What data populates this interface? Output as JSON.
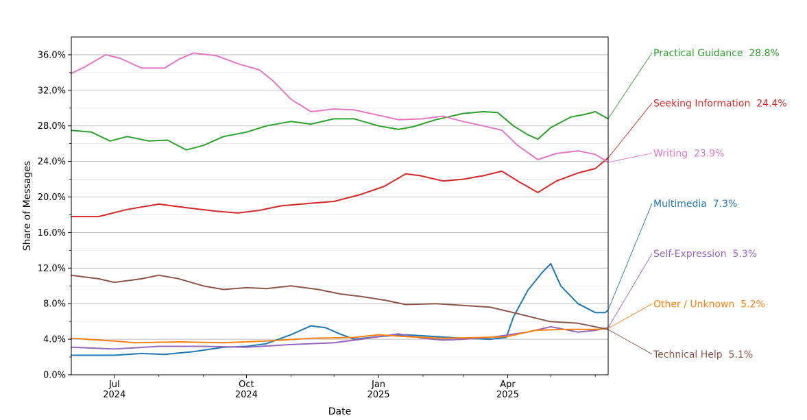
{
  "chart_data": {
    "type": "line",
    "title": "",
    "xlabel": "Date",
    "ylabel": "Share of Messages",
    "xlim": [
      "2024-06-01",
      "2025-06-10"
    ],
    "ylim": [
      0,
      38
    ],
    "y_ticks": [
      0,
      4,
      8,
      12,
      16,
      20,
      24,
      28,
      32,
      36
    ],
    "y_tick_labels": [
      "0.0%",
      "4.0%",
      "8.0%",
      "12.0%",
      "16.0%",
      "20.0%",
      "24.0%",
      "28.0%",
      "32.0%",
      "36.0%"
    ],
    "x_major_ticks": [
      {
        "date": "2024-07-01",
        "line1": "Jul",
        "line2": "2024"
      },
      {
        "date": "2024-10-01",
        "line1": "Oct",
        "line2": "2024"
      },
      {
        "date": "2025-01-01",
        "line1": "Jan",
        "line2": "2025"
      },
      {
        "date": "2025-04-01",
        "line1": "Apr",
        "line2": "2025"
      }
    ],
    "x_minor_ticks": [
      "2024-08-01",
      "2024-09-01",
      "2024-11-01",
      "2024-12-01",
      "2025-02-01",
      "2025-03-01",
      "2025-05-01",
      "2025-06-01"
    ],
    "grid": "horizontal",
    "legend": "end-of-line labels at right",
    "series": [
      {
        "name": "Practical Guidance",
        "final_label": "28.8%",
        "color": "#2ca02c",
        "points": [
          [
            "2024-06-01",
            27.5
          ],
          [
            "2024-06-15",
            27.3
          ],
          [
            "2024-06-28",
            26.3
          ],
          [
            "2024-07-10",
            26.8
          ],
          [
            "2024-07-25",
            26.3
          ],
          [
            "2024-08-07",
            26.4
          ],
          [
            "2024-08-20",
            25.3
          ],
          [
            "2024-09-01",
            25.8
          ],
          [
            "2024-09-15",
            26.8
          ],
          [
            "2024-10-01",
            27.3
          ],
          [
            "2024-10-15",
            28.0
          ],
          [
            "2024-11-01",
            28.5
          ],
          [
            "2024-11-15",
            28.2
          ],
          [
            "2024-12-01",
            28.8
          ],
          [
            "2024-12-15",
            28.8
          ],
          [
            "2025-01-01",
            28.0
          ],
          [
            "2025-01-15",
            27.6
          ],
          [
            "2025-01-25",
            27.9
          ],
          [
            "2025-02-10",
            28.7
          ],
          [
            "2025-03-01",
            29.4
          ],
          [
            "2025-03-15",
            29.6
          ],
          [
            "2025-03-25",
            29.5
          ],
          [
            "2025-04-05",
            28.0
          ],
          [
            "2025-04-15",
            27.0
          ],
          [
            "2025-04-22",
            26.5
          ],
          [
            "2025-05-01",
            27.8
          ],
          [
            "2025-05-15",
            29.0
          ],
          [
            "2025-05-25",
            29.3
          ],
          [
            "2025-06-01",
            29.6
          ],
          [
            "2025-06-10",
            28.8
          ]
        ]
      },
      {
        "name": "Seeking Information",
        "final_label": "24.4%",
        "color": "#d62728",
        "points": [
          [
            "2024-06-01",
            17.8
          ],
          [
            "2024-06-20",
            17.8
          ],
          [
            "2024-07-10",
            18.6
          ],
          [
            "2024-08-01",
            19.2
          ],
          [
            "2024-08-20",
            18.8
          ],
          [
            "2024-09-10",
            18.4
          ],
          [
            "2024-09-25",
            18.2
          ],
          [
            "2024-10-10",
            18.5
          ],
          [
            "2024-10-25",
            19.0
          ],
          [
            "2024-11-15",
            19.3
          ],
          [
            "2024-12-01",
            19.5
          ],
          [
            "2024-12-20",
            20.3
          ],
          [
            "2025-01-05",
            21.2
          ],
          [
            "2025-01-20",
            22.6
          ],
          [
            "2025-01-30",
            22.4
          ],
          [
            "2025-02-15",
            21.8
          ],
          [
            "2025-03-01",
            22.0
          ],
          [
            "2025-03-15",
            22.4
          ],
          [
            "2025-03-28",
            22.9
          ],
          [
            "2025-04-08",
            21.8
          ],
          [
            "2025-04-22",
            20.5
          ],
          [
            "2025-05-05",
            21.8
          ],
          [
            "2025-05-20",
            22.7
          ],
          [
            "2025-06-01",
            23.2
          ],
          [
            "2025-06-10",
            24.4
          ]
        ]
      },
      {
        "name": "Writing",
        "final_label": "23.9%",
        "color": "#e377c2",
        "points": [
          [
            "2024-06-01",
            33.9
          ],
          [
            "2024-06-10",
            34.6
          ],
          [
            "2024-06-25",
            36.0
          ],
          [
            "2024-07-05",
            35.6
          ],
          [
            "2024-07-20",
            34.5
          ],
          [
            "2024-08-05",
            34.5
          ],
          [
            "2024-08-15",
            35.5
          ],
          [
            "2024-08-25",
            36.2
          ],
          [
            "2024-09-10",
            35.9
          ],
          [
            "2024-09-25",
            35.0
          ],
          [
            "2024-10-10",
            34.3
          ],
          [
            "2024-10-20",
            33.0
          ],
          [
            "2024-11-01",
            31.0
          ],
          [
            "2024-11-15",
            29.6
          ],
          [
            "2024-12-01",
            29.9
          ],
          [
            "2024-12-15",
            29.8
          ],
          [
            "2025-01-01",
            29.2
          ],
          [
            "2025-01-15",
            28.7
          ],
          [
            "2025-02-01",
            28.8
          ],
          [
            "2025-02-15",
            29.1
          ],
          [
            "2025-03-01",
            28.5
          ],
          [
            "2025-03-15",
            28.0
          ],
          [
            "2025-03-28",
            27.5
          ],
          [
            "2025-04-08",
            25.8
          ],
          [
            "2025-04-22",
            24.2
          ],
          [
            "2025-05-05",
            24.9
          ],
          [
            "2025-05-20",
            25.2
          ],
          [
            "2025-06-01",
            24.8
          ],
          [
            "2025-06-10",
            23.9
          ]
        ]
      },
      {
        "name": "Multimedia",
        "final_label": "7.3%",
        "color": "#1f77b4",
        "points": [
          [
            "2024-06-01",
            2.2
          ],
          [
            "2024-07-01",
            2.2
          ],
          [
            "2024-07-20",
            2.4
          ],
          [
            "2024-08-05",
            2.3
          ],
          [
            "2024-08-25",
            2.6
          ],
          [
            "2024-09-15",
            3.1
          ],
          [
            "2024-10-01",
            3.2
          ],
          [
            "2024-10-15",
            3.5
          ],
          [
            "2024-11-01",
            4.5
          ],
          [
            "2024-11-15",
            5.5
          ],
          [
            "2024-11-25",
            5.3
          ],
          [
            "2024-12-05",
            4.6
          ],
          [
            "2024-12-15",
            4.0
          ],
          [
            "2025-01-01",
            4.3
          ],
          [
            "2025-01-20",
            4.5
          ],
          [
            "2025-02-10",
            4.3
          ],
          [
            "2025-03-01",
            4.1
          ],
          [
            "2025-03-20",
            4.0
          ],
          [
            "2025-03-31",
            4.2
          ],
          [
            "2025-04-05",
            6.5
          ],
          [
            "2025-04-15",
            9.5
          ],
          [
            "2025-04-25",
            11.5
          ],
          [
            "2025-05-01",
            12.5
          ],
          [
            "2025-05-08",
            10.0
          ],
          [
            "2025-05-20",
            8.0
          ],
          [
            "2025-06-01",
            7.0
          ],
          [
            "2025-06-08",
            7.0
          ],
          [
            "2025-06-10",
            7.3
          ]
        ]
      },
      {
        "name": "Self-Expression",
        "final_label": "5.3%",
        "color": "#9467bd",
        "points": [
          [
            "2024-06-01",
            3.1
          ],
          [
            "2024-07-01",
            2.9
          ],
          [
            "2024-08-01",
            3.2
          ],
          [
            "2024-09-01",
            3.2
          ],
          [
            "2024-10-01",
            3.1
          ],
          [
            "2024-11-01",
            3.4
          ],
          [
            "2024-12-01",
            3.6
          ],
          [
            "2024-12-20",
            4.0
          ],
          [
            "2025-01-15",
            4.6
          ],
          [
            "2025-02-01",
            4.1
          ],
          [
            "2025-02-15",
            3.9
          ],
          [
            "2025-03-01",
            4.0
          ],
          [
            "2025-03-20",
            4.2
          ],
          [
            "2025-04-15",
            4.8
          ],
          [
            "2025-05-01",
            5.4
          ],
          [
            "2025-05-20",
            4.8
          ],
          [
            "2025-06-01",
            5.0
          ],
          [
            "2025-06-10",
            5.3
          ]
        ]
      },
      {
        "name": "Other / Unknown",
        "final_label": "5.2%",
        "color": "#ff7f0e",
        "points": [
          [
            "2024-06-01",
            4.1
          ],
          [
            "2024-07-01",
            3.8
          ],
          [
            "2024-07-15",
            3.6
          ],
          [
            "2024-08-15",
            3.7
          ],
          [
            "2024-09-15",
            3.6
          ],
          [
            "2024-10-15",
            3.8
          ],
          [
            "2024-11-15",
            4.1
          ],
          [
            "2024-12-15",
            4.2
          ],
          [
            "2025-01-01",
            4.5
          ],
          [
            "2025-01-20",
            4.3
          ],
          [
            "2025-02-15",
            4.1
          ],
          [
            "2025-03-15",
            4.2
          ],
          [
            "2025-04-01",
            4.3
          ],
          [
            "2025-04-20",
            5.0
          ],
          [
            "2025-05-10",
            5.1
          ],
          [
            "2025-06-01",
            5.1
          ],
          [
            "2025-06-10",
            5.2
          ]
        ]
      },
      {
        "name": "Technical Help",
        "final_label": "5.1%",
        "color": "#8c564b",
        "points": [
          [
            "2024-06-01",
            11.2
          ],
          [
            "2024-06-20",
            10.8
          ],
          [
            "2024-07-01",
            10.4
          ],
          [
            "2024-07-20",
            10.8
          ],
          [
            "2024-08-01",
            11.2
          ],
          [
            "2024-08-15",
            10.8
          ],
          [
            "2024-09-01",
            10.0
          ],
          [
            "2024-09-15",
            9.6
          ],
          [
            "2024-10-01",
            9.8
          ],
          [
            "2024-10-15",
            9.7
          ],
          [
            "2024-11-01",
            10.0
          ],
          [
            "2024-11-20",
            9.6
          ],
          [
            "2024-12-05",
            9.1
          ],
          [
            "2024-12-20",
            8.8
          ],
          [
            "2025-01-05",
            8.4
          ],
          [
            "2025-01-20",
            7.9
          ],
          [
            "2025-02-10",
            8.0
          ],
          [
            "2025-03-01",
            7.8
          ],
          [
            "2025-03-20",
            7.6
          ],
          [
            "2025-04-10",
            6.8
          ],
          [
            "2025-04-30",
            6.0
          ],
          [
            "2025-05-20",
            5.8
          ],
          [
            "2025-06-10",
            5.1
          ]
        ]
      }
    ]
  }
}
